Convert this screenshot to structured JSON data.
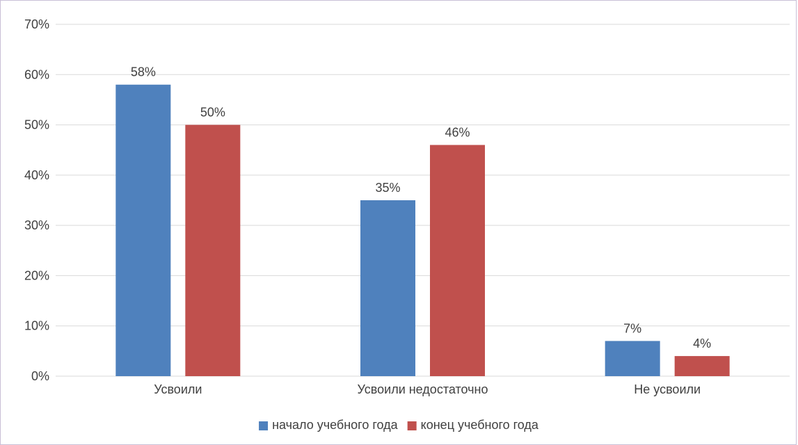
{
  "chart_data": {
    "type": "bar",
    "categories": [
      "Усвоили",
      "Усвоили недостаточно",
      "Не усвоили"
    ],
    "series": [
      {
        "name": "начало учебного года",
        "values": [
          58,
          35,
          7
        ],
        "labels": [
          "58%",
          "35%",
          "7%"
        ],
        "color": "#4f81bd"
      },
      {
        "name": "конец учебного года",
        "values": [
          50,
          46,
          4
        ],
        "labels": [
          "50%",
          "46%",
          "4%"
        ],
        "color": "#c0504d"
      }
    ],
    "ylim": [
      0,
      70
    ],
    "yticks": [
      0,
      10,
      20,
      30,
      40,
      50,
      60,
      70
    ],
    "ytick_labels": [
      "0%",
      "10%",
      "20%",
      "30%",
      "40%",
      "50%",
      "60%",
      "70%"
    ],
    "grid": true,
    "legend_position": "bottom",
    "gridline_color": "#d9d9d9",
    "title": "",
    "xlabel": "",
    "ylabel": ""
  }
}
